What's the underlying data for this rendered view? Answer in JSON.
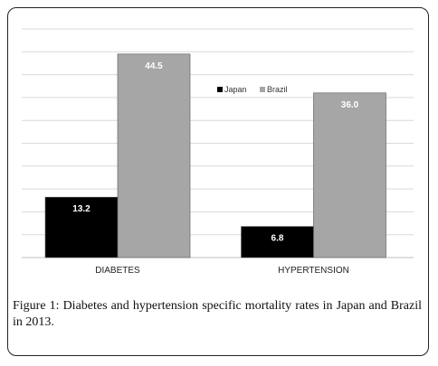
{
  "chart_data": {
    "type": "bar",
    "categories": [
      "DIABETES",
      "HYPERTENSION"
    ],
    "series": [
      {
        "name": "Japan",
        "color": "#000000",
        "values": [
          13.2,
          6.8
        ]
      },
      {
        "name": "Brazil",
        "color": "#a6a6a6",
        "values": [
          44.5,
          36.0
        ]
      }
    ],
    "value_labels": {
      "Japan": [
        "13.2",
        "6.8"
      ],
      "Brazil": [
        "44.5",
        "36.0"
      ]
    },
    "ylim": [
      0,
      50
    ],
    "grid": true,
    "legend_position": "top-center"
  },
  "caption": {
    "label": "Figure",
    "text": "1: Diabetes and hypertension specific mortality rates in Japan and Brazil in 2013."
  }
}
